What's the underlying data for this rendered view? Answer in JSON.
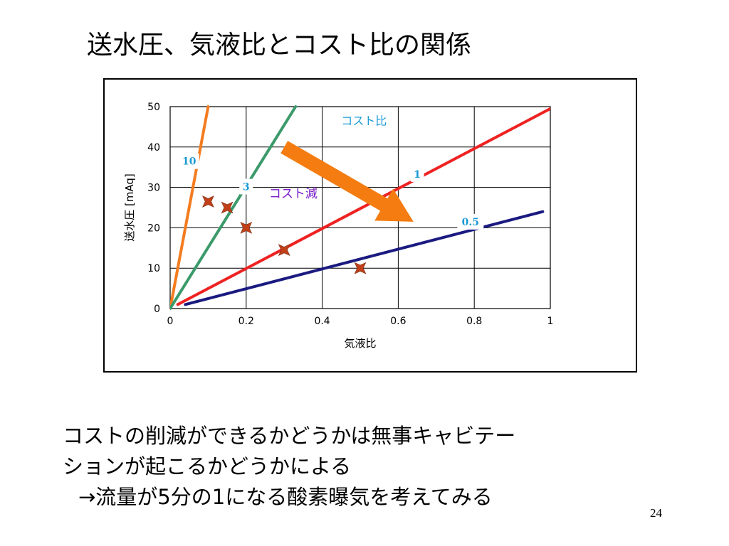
{
  "slide": {
    "title": "送水圧、気液比とコスト比の関係",
    "body_lines": [
      "コストの削減ができるかどうかは無事キャビテー",
      "ションが起こるかどうかによる",
      "→流量が5分の1になる酸素曝気を考えてみる"
    ],
    "page_number": "24"
  },
  "colors": {
    "series_10": "#f47c20",
    "series_3": "#3b9a6a",
    "series_1": "#ee2222",
    "series_05": "#1a1a80",
    "markers": "#c0401a",
    "arrow": "#f47c10",
    "label_blue": "#1a9ad6",
    "label_purple": "#7a1ec8"
  },
  "chart_data": {
    "type": "line",
    "xlabel": "気液比",
    "ylabel": "送水圧 [mAq]",
    "xlim": [
      0,
      1
    ],
    "ylim": [
      0,
      50
    ],
    "xticks": [
      "0",
      "0.2",
      "0.4",
      "0.6",
      "0.8",
      "1"
    ],
    "yticks": [
      "0",
      "10",
      "20",
      "30",
      "40",
      "50"
    ],
    "grid": true,
    "series": [
      {
        "name": "10",
        "x": [
          0,
          0.1
        ],
        "y": [
          0,
          50
        ]
      },
      {
        "name": "3",
        "x": [
          0,
          0.33
        ],
        "y": [
          0,
          50
        ]
      },
      {
        "name": "1",
        "x": [
          0.02,
          1
        ],
        "y": [
          1,
          49.5
        ]
      },
      {
        "name": "0.5",
        "x": [
          0.04,
          0.98
        ],
        "y": [
          1,
          24
        ]
      }
    ],
    "markers": {
      "shape": "star4",
      "x": [
        0.1,
        0.15,
        0.2,
        0.3,
        0.5
      ],
      "y": [
        26.5,
        25,
        20,
        14.5,
        10
      ]
    },
    "annotations": {
      "cost_ratio_label": "コスト比",
      "cost_reduction_label": "コスト減",
      "arrow": {
        "from": [
          0.3,
          40
        ],
        "to": [
          0.64,
          21.5
        ]
      }
    }
  }
}
